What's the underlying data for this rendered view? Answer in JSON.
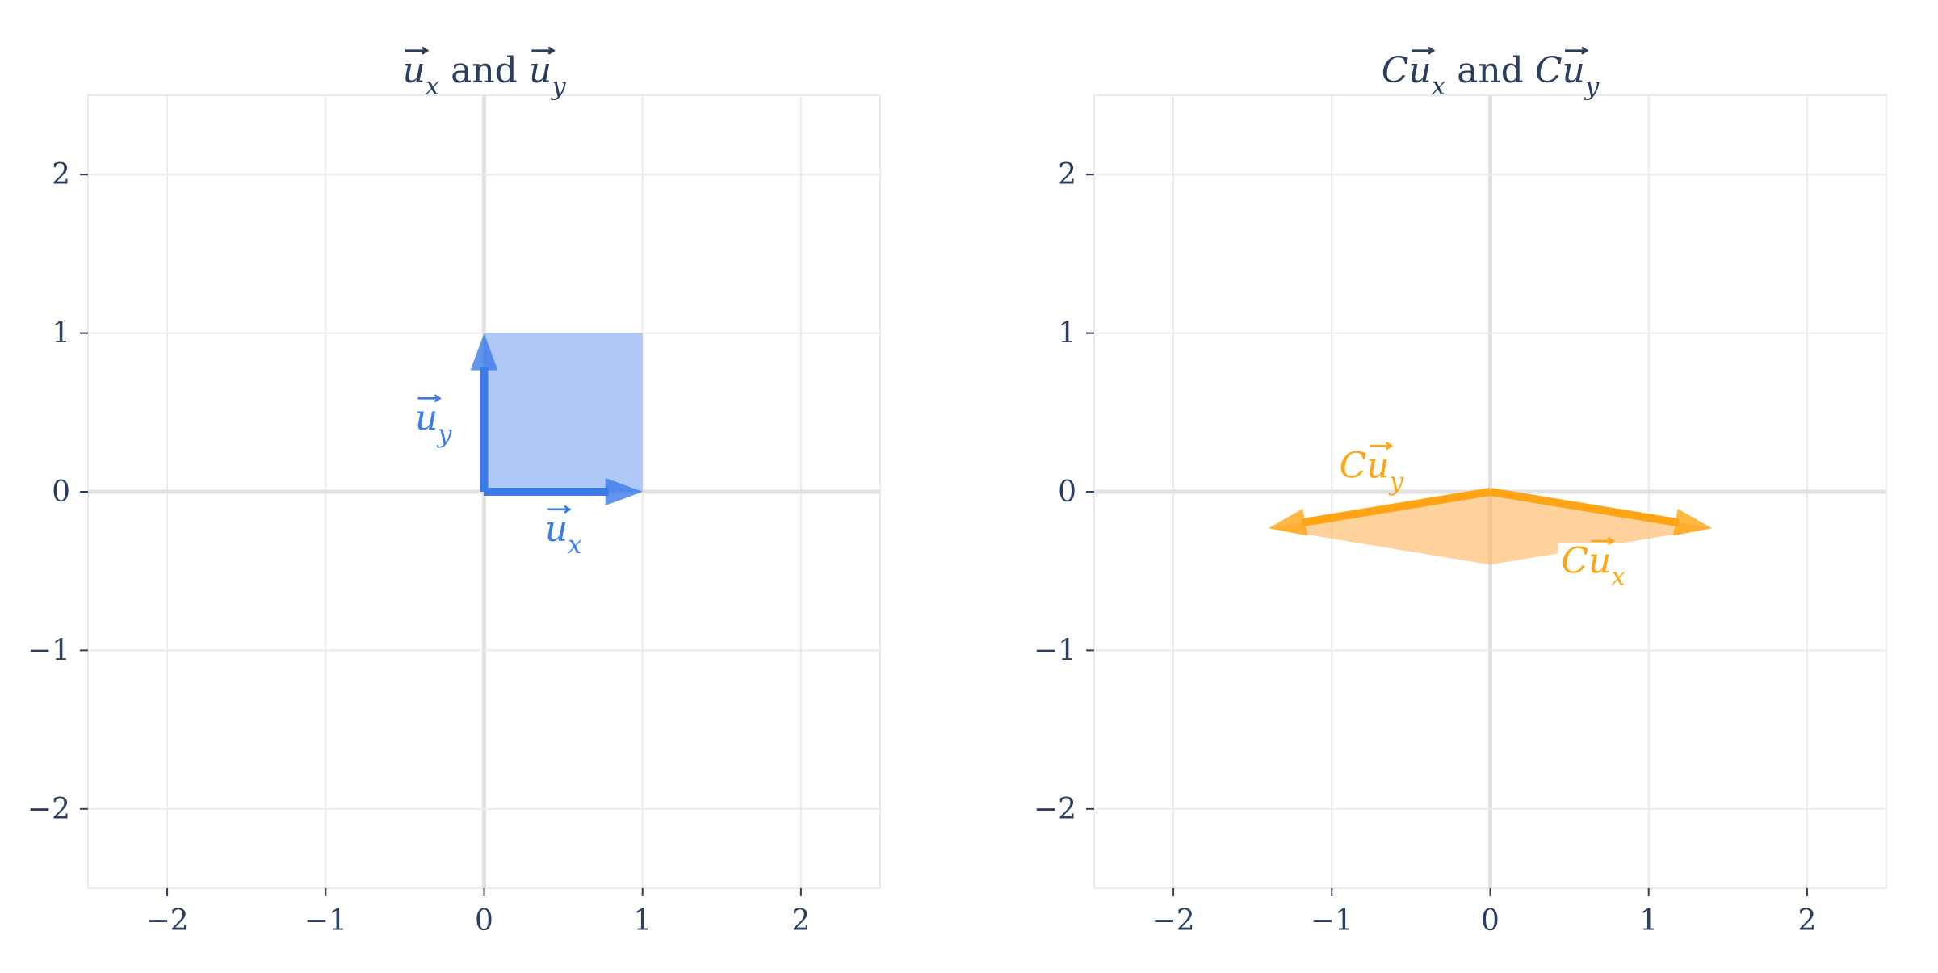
{
  "chart_data": [
    {
      "type": "scatter",
      "title_parts": [
        {
          "text": "u",
          "italic": true,
          "vec": true
        },
        {
          "text": "x",
          "italic": true,
          "sub": true
        },
        {
          "text": " and ",
          "italic": false
        },
        {
          "text": "u",
          "italic": true,
          "vec": true
        },
        {
          "text": "y",
          "italic": true,
          "sub": true
        }
      ],
      "xlim": [
        -2.5,
        2.5
      ],
      "ylim": [
        -2.5,
        2.5
      ],
      "xticks": [
        -2,
        -1,
        0,
        1,
        2
      ],
      "yticks": [
        -2,
        -1,
        0,
        1,
        2
      ],
      "grid": true,
      "fill_color": "#7aa3f2",
      "fill_opacity": 0.6,
      "polygon": [
        [
          0,
          0
        ],
        [
          1,
          0
        ],
        [
          1,
          1
        ],
        [
          0,
          1
        ]
      ],
      "vectors": [
        {
          "name": "u_x",
          "from": [
            0,
            0
          ],
          "to": [
            1,
            0
          ],
          "color": "#3b7bea",
          "label_parts": [
            {
              "text": "u",
              "italic": true,
              "vec": true
            },
            {
              "text": "x",
              "italic": true,
              "sub": true
            }
          ],
          "label_at": [
            0.5,
            -0.25
          ]
        },
        {
          "name": "u_y",
          "from": [
            0,
            0
          ],
          "to": [
            0,
            1
          ],
          "color": "#3b7bea",
          "label_parts": [
            {
              "text": "u",
              "italic": true,
              "vec": true
            },
            {
              "text": "y",
              "italic": true,
              "sub": true
            }
          ],
          "label_at": [
            -0.32,
            0.45
          ]
        }
      ]
    },
    {
      "type": "scatter",
      "title_parts": [
        {
          "text": "C",
          "italic": true
        },
        {
          "text": "u",
          "italic": true,
          "vec": true
        },
        {
          "text": "x",
          "italic": true,
          "sub": true
        },
        {
          "text": " and ",
          "italic": false
        },
        {
          "text": "C",
          "italic": true
        },
        {
          "text": "u",
          "italic": true,
          "vec": true
        },
        {
          "text": "y",
          "italic": true,
          "sub": true
        }
      ],
      "xlim": [
        -2.5,
        2.5
      ],
      "ylim": [
        -2.5,
        2.5
      ],
      "xticks": [
        -2,
        -1,
        0,
        1,
        2
      ],
      "yticks": [
        -2,
        -1,
        0,
        1,
        2
      ],
      "grid": true,
      "fill_color": "#ffb45c",
      "fill_opacity": 0.6,
      "polygon": [
        [
          0,
          0
        ],
        [
          1.4,
          -0.23
        ],
        [
          0,
          -0.46
        ],
        [
          -1.4,
          -0.23
        ]
      ],
      "vectors": [
        {
          "name": "Cu_x",
          "from": [
            0,
            0
          ],
          "to": [
            1.4,
            -0.23
          ],
          "color": "#ffa515",
          "label_parts": [
            {
              "text": "C",
              "italic": true
            },
            {
              "text": "u",
              "italic": true,
              "vec": true
            },
            {
              "text": "x",
              "italic": true,
              "sub": true
            }
          ],
          "label_at": [
            0.65,
            -0.45
          ],
          "label_bg": true
        },
        {
          "name": "Cu_y",
          "from": [
            0,
            0
          ],
          "to": [
            -1.4,
            -0.23
          ],
          "color": "#ffa515",
          "label_parts": [
            {
              "text": "C",
              "italic": true
            },
            {
              "text": "u",
              "italic": true,
              "vec": true
            },
            {
              "text": "y",
              "italic": true,
              "sub": true
            }
          ],
          "label_at": [
            -0.75,
            0.15
          ]
        }
      ]
    }
  ]
}
